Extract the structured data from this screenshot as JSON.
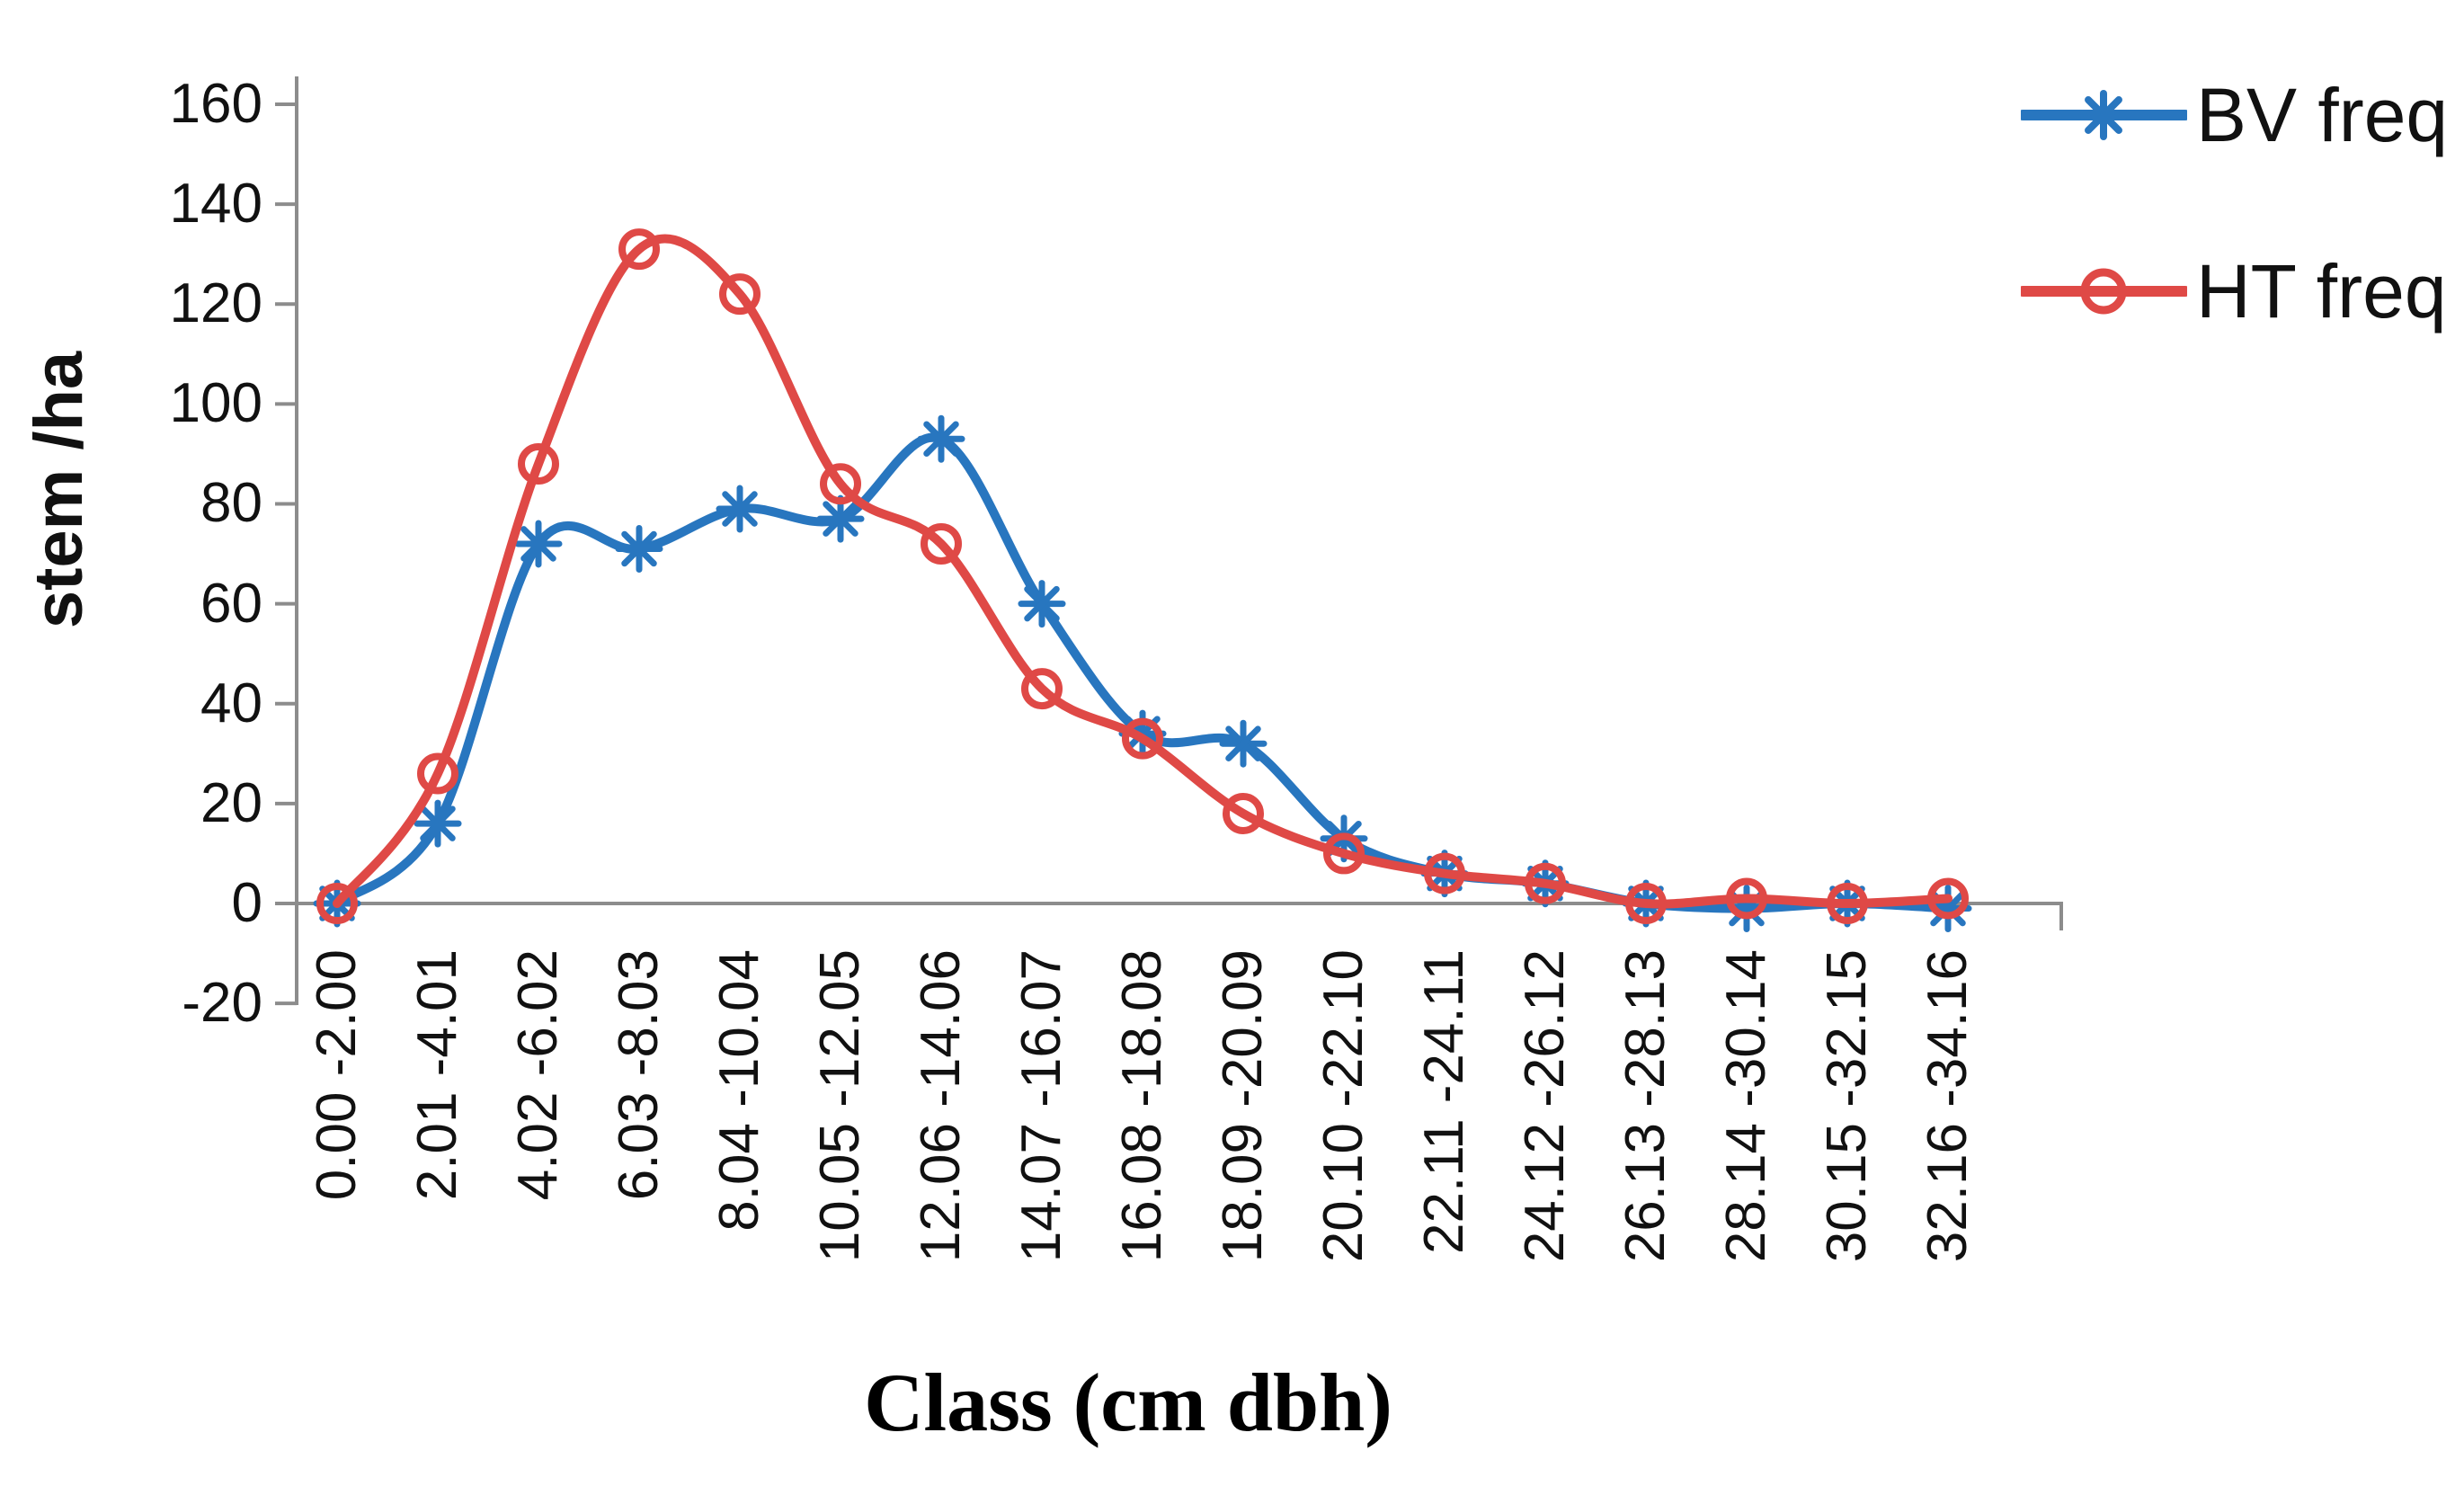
{
  "figure": {
    "background_color": "#ffffff",
    "axis_color": "#8c8c8c",
    "text_color": "#111111"
  },
  "chart_data": {
    "type": "line",
    "title": "",
    "xlabel": "Class (cm dbh)",
    "ylabel": "stem /ha",
    "ylim": [
      -20,
      160
    ],
    "ytick_step": 20,
    "ytick_labels": [
      "160",
      "140",
      "120",
      "100",
      "80",
      "60",
      "40",
      "20",
      "0",
      "-20"
    ],
    "grid": false,
    "zero_baseline_shown": true,
    "smooth_lines": true,
    "legend_position": "top-right",
    "categories": [
      "0.00 -2.00",
      "2.01 -4.01",
      "4.02 -6.02",
      "6.03 -8.03",
      "8.04 -10.04",
      "10.05 -12.05",
      "12.06 -14.06",
      "14.07 -16.07",
      "16.08 -18.08",
      "18.09 -20.09",
      "20.10 -22.10",
      "22.11 -24.11",
      "24.12 -26.12",
      "26.13 -28.13",
      "28.14 -30.14",
      "30.15 -32.15",
      "32.16 -34.16"
    ],
    "series": [
      {
        "name": "BV freq",
        "color": "#2876bf",
        "marker": "asterisk",
        "values": [
          0,
          16,
          72,
          71,
          79,
          77,
          93,
          60,
          34,
          32,
          13,
          6,
          4,
          0,
          -1,
          0,
          -1
        ]
      },
      {
        "name": "HT freq",
        "color": "#df4946",
        "marker": "circle",
        "values": [
          0,
          26,
          88,
          131,
          122,
          84,
          72,
          43,
          33,
          18,
          10,
          6,
          4,
          0,
          1,
          0,
          1
        ]
      }
    ]
  }
}
